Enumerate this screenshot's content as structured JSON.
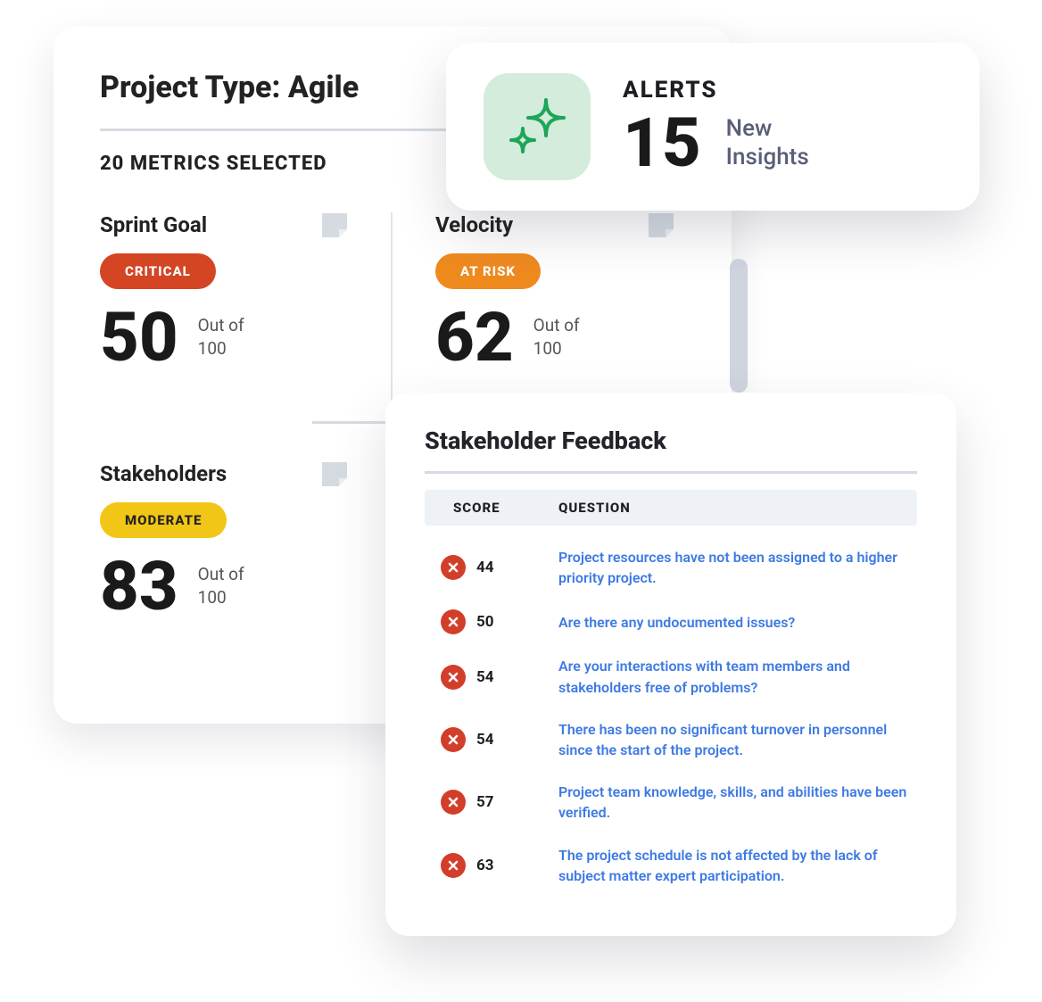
{
  "colors": {
    "critical": "#d44524",
    "at_risk": "#ef8a1f",
    "moderate": "#f2c616",
    "moderate_text": "#222222",
    "link": "#3e7ae3",
    "alerts_icon_bg": "#d3ecdc",
    "alerts_icon_stroke": "#1ea657",
    "feedback_dot": "#d23e29",
    "note_icon": "#d6dbe2"
  },
  "metrics_card": {
    "title": "Project Type: Agile",
    "subtitle": "20 METRICS SELECTED",
    "max_label_line1": "Out of",
    "max_label_line2": "100",
    "items": [
      {
        "name": "Sprint Goal",
        "status": "CRITICAL",
        "status_key": "critical",
        "score": "50"
      },
      {
        "name": "Velocity",
        "status": "AT RISK",
        "status_key": "at_risk",
        "score": "62"
      },
      {
        "name": "Stakeholders",
        "status": "MODERATE",
        "status_key": "moderate",
        "score": "83"
      }
    ]
  },
  "alerts": {
    "heading": "ALERTS",
    "count": "15",
    "desc_line1": "New",
    "desc_line2": "Insights"
  },
  "feedback": {
    "title": "Stakeholder Feedback",
    "col_score": "SCORE",
    "col_question": "QUESTION",
    "rows": [
      {
        "score": "44",
        "question": "Project resources have not been assigned to a higher priority project."
      },
      {
        "score": "50",
        "question": "Are there any undocumented issues?"
      },
      {
        "score": "54",
        "question": "Are your interactions with team members and stakeholders free of problems?"
      },
      {
        "score": "54",
        "question": "There has been no significant turnover in personnel since the start of the project."
      },
      {
        "score": "57",
        "question": "Project team knowledge, skills, and abilities have been verified."
      },
      {
        "score": "63",
        "question": "The project schedule is not affected by the lack of subject matter expert participation."
      }
    ]
  }
}
